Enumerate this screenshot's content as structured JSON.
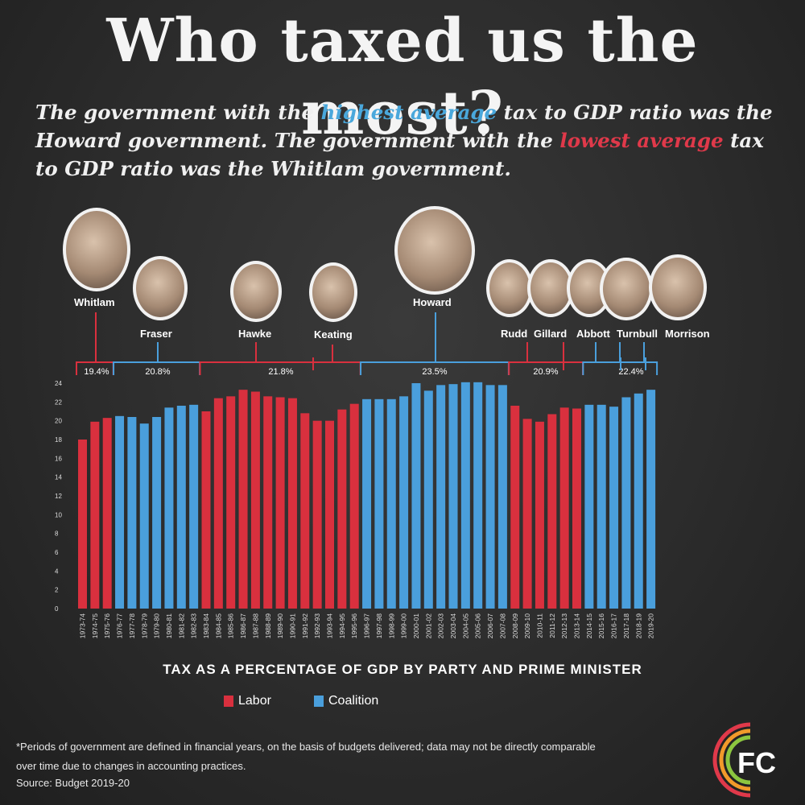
{
  "title": "Who taxed us the most?",
  "subtitle": {
    "part1": "The government with the ",
    "highlight_high": "highest average",
    "part2": " tax to GDP ratio was the Howard government. The government with the ",
    "highlight_low": "lowest average",
    "part3": " tax to GDP ratio was the Whitlam government."
  },
  "prime_ministers": [
    {
      "name": "Whitlam",
      "party": "Labor"
    },
    {
      "name": "Fraser",
      "party": "Coalition"
    },
    {
      "name": "Hawke",
      "party": "Labor"
    },
    {
      "name": "Keating",
      "party": "Labor"
    },
    {
      "name": "Howard",
      "party": "Coalition"
    },
    {
      "name": "Rudd",
      "party": "Labor"
    },
    {
      "name": "Gillard",
      "party": "Labor"
    },
    {
      "name": "Abbott",
      "party": "Coalition"
    },
    {
      "name": "Turnbull",
      "party": "Coalition"
    },
    {
      "name": "Morrison",
      "party": "Coalition"
    }
  ],
  "averages": [
    "19.4%",
    "20.8%",
    "21.8%",
    "23.5%",
    "20.9%",
    "22.4%"
  ],
  "colors": {
    "labor": "#d9303e",
    "coalition": "#4a9fdc"
  },
  "chart_data": {
    "type": "bar",
    "title": "TAX AS A PERCENTAGE OF GDP BY PARTY AND PRIME MINISTER",
    "ylim": [
      0,
      24
    ],
    "yticks": [
      0,
      2,
      4,
      6,
      8,
      10,
      12,
      14,
      16,
      18,
      20,
      22,
      24
    ],
    "categories": [
      "1973-74",
      "1974-75",
      "1975-76",
      "1976-77",
      "1977-78",
      "1978-79",
      "1979-80",
      "1980-81",
      "1981-82",
      "1982-83",
      "1983-84",
      "1984-85",
      "1985-86",
      "1986-87",
      "1987-88",
      "1988-89",
      "1989-90",
      "1990-91",
      "1991-92",
      "1992-93",
      "1993-94",
      "1994-95",
      "1995-96",
      "1996-97",
      "1997-98",
      "1998-99",
      "1999-00",
      "2000-01",
      "2001-02",
      "2002-03",
      "2003-04",
      "2004-05",
      "2005-06",
      "2006-07",
      "2007-08",
      "2008-09",
      "2009-10",
      "2010-11",
      "2011-12",
      "2012-13",
      "2013-14",
      "2014-15",
      "2015-16",
      "2016-17",
      "2017-18",
      "2018-19",
      "2019-20"
    ],
    "values": [
      18.0,
      19.9,
      20.3,
      20.5,
      20.4,
      19.7,
      20.4,
      21.4,
      21.6,
      21.7,
      21.0,
      22.4,
      22.6,
      23.3,
      23.1,
      22.6,
      22.5,
      22.4,
      20.8,
      20.0,
      20.0,
      21.2,
      21.8,
      22.3,
      22.3,
      22.3,
      22.6,
      24.0,
      23.2,
      23.8,
      23.9,
      24.1,
      24.1,
      23.8,
      23.8,
      21.6,
      20.2,
      19.9,
      20.7,
      21.4,
      21.3,
      21.7,
      21.7,
      21.5,
      22.5,
      22.9,
      23.3
    ],
    "party": [
      "Labor",
      "Labor",
      "Labor",
      "Coalition",
      "Coalition",
      "Coalition",
      "Coalition",
      "Coalition",
      "Coalition",
      "Coalition",
      "Labor",
      "Labor",
      "Labor",
      "Labor",
      "Labor",
      "Labor",
      "Labor",
      "Labor",
      "Labor",
      "Labor",
      "Labor",
      "Labor",
      "Labor",
      "Coalition",
      "Coalition",
      "Coalition",
      "Coalition",
      "Coalition",
      "Coalition",
      "Coalition",
      "Coalition",
      "Coalition",
      "Coalition",
      "Coalition",
      "Coalition",
      "Labor",
      "Labor",
      "Labor",
      "Labor",
      "Labor",
      "Labor",
      "Coalition",
      "Coalition",
      "Coalition",
      "Coalition",
      "Coalition",
      "Coalition"
    ],
    "legend": [
      "Labor",
      "Coalition"
    ]
  },
  "footnote": "*Periods of government are defined in financial years, on the basis of budgets delivered; data may not be directly comparable over time due to changes in accounting practices.",
  "source": "Source: Budget 2019-20",
  "logo_text": "FC"
}
